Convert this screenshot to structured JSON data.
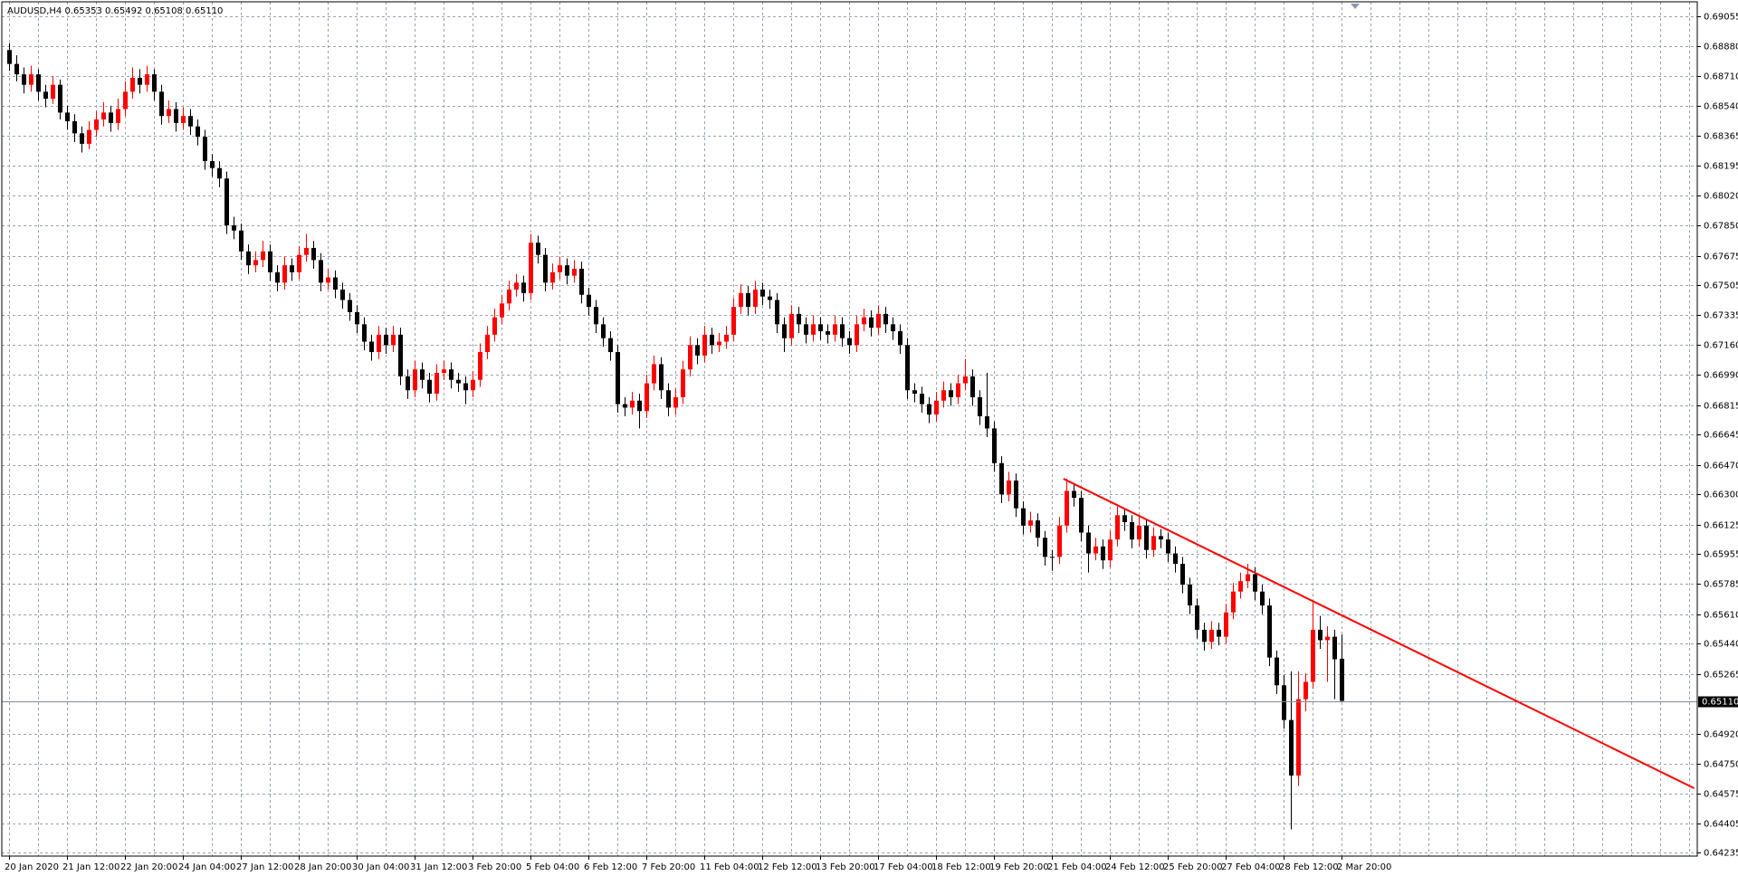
{
  "chart_data": {
    "type": "candlestick",
    "title": "AUDUSD,H4  0.65353 0.65492 0.65108 0.65110",
    "up_color": "#ff0000",
    "down_color": "#000000",
    "grid": true,
    "ylim": [
      0.64216,
      0.69138
    ],
    "yticks": [
      {
        "value": 0.69055,
        "label": "0.69055"
      },
      {
        "value": 0.6888,
        "label": "0.68880"
      },
      {
        "value": 0.6871,
        "label": "0.68710"
      },
      {
        "value": 0.6854,
        "label": "0.68540"
      },
      {
        "value": 0.68365,
        "label": "0.68365"
      },
      {
        "value": 0.68195,
        "label": "0.68195"
      },
      {
        "value": 0.6802,
        "label": "0.68020"
      },
      {
        "value": 0.6785,
        "label": "0.67850"
      },
      {
        "value": 0.67675,
        "label": "0.67675"
      },
      {
        "value": 0.67505,
        "label": "0.67505"
      },
      {
        "value": 0.67335,
        "label": "0.67335"
      },
      {
        "value": 0.6716,
        "label": "0.67160"
      },
      {
        "value": 0.6699,
        "label": "0.66990"
      },
      {
        "value": 0.66815,
        "label": "0.66815"
      },
      {
        "value": 0.66645,
        "label": "0.66645"
      },
      {
        "value": 0.6647,
        "label": "0.66470"
      },
      {
        "value": 0.663,
        "label": "0.66300"
      },
      {
        "value": 0.66125,
        "label": "0.66125"
      },
      {
        "value": 0.65955,
        "label": "0.65955"
      },
      {
        "value": 0.65785,
        "label": "0.65785"
      },
      {
        "value": 0.6561,
        "label": "0.65610"
      },
      {
        "value": 0.6544,
        "label": "0.65440"
      },
      {
        "value": 0.65265,
        "label": "0.65265"
      },
      {
        "value": 0.6492,
        "label": "0.64920"
      },
      {
        "value": 0.6475,
        "label": "0.64750"
      },
      {
        "value": 0.64575,
        "label": "0.64575"
      },
      {
        "value": 0.64405,
        "label": "0.64405"
      },
      {
        "value": 0.64235,
        "label": "0.64235"
      }
    ],
    "current_price": {
      "value": 0.6511,
      "label": "0.65110"
    },
    "trendline": {
      "x": [
        145.6,
        232.7
      ],
      "y": [
        0.6639,
        0.64607
      ],
      "color": "#ff0000"
    },
    "categories": [
      "20 Jan 2020",
      null,
      null,
      null,
      null,
      null,
      null,
      null,
      "21 Jan 12:00",
      null,
      null,
      null,
      null,
      null,
      null,
      null,
      "22 Jan 20:00",
      null,
      null,
      null,
      null,
      null,
      null,
      null,
      "24 Jan 04:00",
      null,
      null,
      null,
      null,
      null,
      null,
      null,
      "27 Jan 12:00",
      null,
      null,
      null,
      null,
      null,
      null,
      null,
      "28 Jan 20:00",
      null,
      null,
      null,
      null,
      null,
      null,
      null,
      "30 Jan 04:00",
      null,
      null,
      null,
      null,
      null,
      null,
      null,
      "31 Jan 12:00",
      null,
      null,
      null,
      null,
      null,
      null,
      null,
      "3 Feb 20:00",
      null,
      null,
      null,
      null,
      null,
      null,
      null,
      "5 Feb 04:00",
      null,
      null,
      null,
      null,
      null,
      null,
      null,
      "6 Feb 12:00",
      null,
      null,
      null,
      null,
      null,
      null,
      null,
      "7 Feb 20:00",
      null,
      null,
      null,
      null,
      null,
      null,
      null,
      "11 Feb 04:00",
      null,
      null,
      null,
      null,
      null,
      null,
      null,
      "12 Feb 12:00",
      null,
      null,
      null,
      null,
      null,
      null,
      null,
      "13 Feb 20:00",
      null,
      null,
      null,
      null,
      null,
      null,
      null,
      "17 Feb 04:00",
      null,
      null,
      null,
      null,
      null,
      null,
      null,
      "18 Feb 12:00",
      null,
      null,
      null,
      null,
      null,
      null,
      null,
      "19 Feb 20:00",
      null,
      null,
      null,
      null,
      null,
      null,
      null,
      "21 Feb 04:00",
      null,
      null,
      null,
      null,
      null,
      null,
      null,
      "24 Feb 12:00",
      null,
      null,
      null,
      null,
      null,
      null,
      null,
      "25 Feb 20:00",
      null,
      null,
      null,
      null,
      null,
      null,
      null,
      "27 Feb 04:00",
      null,
      null,
      null,
      null,
      null,
      null,
      null,
      "28 Feb 12:00",
      null,
      null,
      null,
      null,
      null,
      null,
      null,
      "2 Mar 20:00"
    ],
    "ohlc": [
      [
        0.6886,
        0.689,
        0.6874,
        0.6878
      ],
      [
        0.6878,
        0.6883,
        0.6868,
        0.6872
      ],
      [
        0.6872,
        0.6876,
        0.6861,
        0.6866
      ],
      [
        0.6866,
        0.6877,
        0.6862,
        0.6872
      ],
      [
        0.6872,
        0.6875,
        0.6857,
        0.6862
      ],
      [
        0.6862,
        0.6866,
        0.6853,
        0.6858
      ],
      [
        0.6858,
        0.6871,
        0.6855,
        0.6866
      ],
      [
        0.6866,
        0.6869,
        0.6846,
        0.685
      ],
      [
        0.685,
        0.6854,
        0.684,
        0.6845
      ],
      [
        0.6845,
        0.6849,
        0.6833,
        0.6838
      ],
      [
        0.6838,
        0.6842,
        0.6827,
        0.6832
      ],
      [
        0.6832,
        0.6845,
        0.6829,
        0.684
      ],
      [
        0.684,
        0.6851,
        0.6836,
        0.6846
      ],
      [
        0.6846,
        0.6856,
        0.6842,
        0.685
      ],
      [
        0.685,
        0.6854,
        0.6839,
        0.6844
      ],
      [
        0.6844,
        0.6858,
        0.684,
        0.6852
      ],
      [
        0.6852,
        0.6868,
        0.6848,
        0.6862
      ],
      [
        0.6862,
        0.6876,
        0.6858,
        0.687
      ],
      [
        0.687,
        0.6875,
        0.6861,
        0.6866
      ],
      [
        0.6866,
        0.6877,
        0.6862,
        0.6872
      ],
      [
        0.6872,
        0.6875,
        0.6857,
        0.6862
      ],
      [
        0.6862,
        0.6866,
        0.6843,
        0.6848
      ],
      [
        0.6848,
        0.6857,
        0.6844,
        0.6852
      ],
      [
        0.6852,
        0.6856,
        0.6839,
        0.6844
      ],
      [
        0.6844,
        0.6853,
        0.684,
        0.6848
      ],
      [
        0.6848,
        0.6852,
        0.6837,
        0.6842
      ],
      [
        0.6842,
        0.6846,
        0.6831,
        0.6836
      ],
      [
        0.6836,
        0.684,
        0.6817,
        0.6822
      ],
      [
        0.6822,
        0.6826,
        0.6813,
        0.6818
      ],
      [
        0.6818,
        0.6822,
        0.6807,
        0.6812
      ],
      [
        0.6812,
        0.6816,
        0.678,
        0.6785
      ],
      [
        0.6785,
        0.679,
        0.6777,
        0.6782
      ],
      [
        0.6782,
        0.6786,
        0.6765,
        0.677
      ],
      [
        0.677,
        0.6774,
        0.6757,
        0.6762
      ],
      [
        0.6762,
        0.677,
        0.6758,
        0.6765
      ],
      [
        0.6765,
        0.6776,
        0.6761,
        0.677
      ],
      [
        0.677,
        0.6774,
        0.6753,
        0.6758
      ],
      [
        0.6758,
        0.6762,
        0.6747,
        0.6752
      ],
      [
        0.6752,
        0.6767,
        0.6748,
        0.6762
      ],
      [
        0.6762,
        0.6766,
        0.6753,
        0.6758
      ],
      [
        0.6758,
        0.6773,
        0.6754,
        0.6768
      ],
      [
        0.6768,
        0.678,
        0.6764,
        0.6772
      ],
      [
        0.6772,
        0.6776,
        0.676,
        0.6765
      ],
      [
        0.6765,
        0.6769,
        0.6747,
        0.6752
      ],
      [
        0.6752,
        0.676,
        0.6748,
        0.6755
      ],
      [
        0.6755,
        0.6759,
        0.6743,
        0.6748
      ],
      [
        0.6748,
        0.6752,
        0.6737,
        0.6742
      ],
      [
        0.6742,
        0.6746,
        0.673,
        0.6735
      ],
      [
        0.6735,
        0.6739,
        0.6723,
        0.6728
      ],
      [
        0.6728,
        0.6732,
        0.6713,
        0.6718
      ],
      [
        0.6718,
        0.6722,
        0.6707,
        0.6712
      ],
      [
        0.6712,
        0.6727,
        0.6708,
        0.6722
      ],
      [
        0.6722,
        0.6726,
        0.6711,
        0.6716
      ],
      [
        0.6716,
        0.6727,
        0.6712,
        0.6722
      ],
      [
        0.6722,
        0.6726,
        0.6693,
        0.6698
      ],
      [
        0.6698,
        0.6702,
        0.6685,
        0.669
      ],
      [
        0.669,
        0.6707,
        0.6686,
        0.6702
      ],
      [
        0.6702,
        0.6706,
        0.6691,
        0.6696
      ],
      [
        0.6696,
        0.67,
        0.6683,
        0.6688
      ],
      [
        0.6688,
        0.6705,
        0.6684,
        0.67
      ],
      [
        0.67,
        0.6707,
        0.6696,
        0.6702
      ],
      [
        0.6702,
        0.6706,
        0.6691,
        0.6696
      ],
      [
        0.6696,
        0.67,
        0.6689,
        0.6694
      ],
      [
        0.6694,
        0.6698,
        0.6682,
        0.669
      ],
      [
        0.669,
        0.6701,
        0.6686,
        0.6696
      ],
      [
        0.6696,
        0.6717,
        0.6692,
        0.6712
      ],
      [
        0.6712,
        0.6727,
        0.6708,
        0.6722
      ],
      [
        0.6722,
        0.6737,
        0.6718,
        0.6732
      ],
      [
        0.6732,
        0.6745,
        0.6728,
        0.674
      ],
      [
        0.674,
        0.6753,
        0.6736,
        0.6748
      ],
      [
        0.6748,
        0.6757,
        0.6744,
        0.6752
      ],
      [
        0.6752,
        0.6756,
        0.6741,
        0.6746
      ],
      [
        0.6746,
        0.678,
        0.6742,
        0.6775
      ],
      [
        0.6775,
        0.6779,
        0.6763,
        0.6768
      ],
      [
        0.6768,
        0.6772,
        0.6747,
        0.6752
      ],
      [
        0.6752,
        0.6763,
        0.6748,
        0.6758
      ],
      [
        0.6758,
        0.6767,
        0.6754,
        0.6762
      ],
      [
        0.6762,
        0.6766,
        0.6751,
        0.6756
      ],
      [
        0.6756,
        0.6765,
        0.6752,
        0.676
      ],
      [
        0.676,
        0.6764,
        0.674,
        0.6745
      ],
      [
        0.6745,
        0.6749,
        0.6733,
        0.6738
      ],
      [
        0.6738,
        0.6742,
        0.6723,
        0.6728
      ],
      [
        0.6728,
        0.6732,
        0.6715,
        0.672
      ],
      [
        0.672,
        0.6724,
        0.6707,
        0.6712
      ],
      [
        0.6712,
        0.6716,
        0.6677,
        0.6682
      ],
      [
        0.6682,
        0.6686,
        0.6675,
        0.668
      ],
      [
        0.668,
        0.6689,
        0.6676,
        0.6684
      ],
      [
        0.6684,
        0.6688,
        0.6668,
        0.6678
      ],
      [
        0.6678,
        0.6699,
        0.6674,
        0.6694
      ],
      [
        0.6694,
        0.671,
        0.669,
        0.6705
      ],
      [
        0.6705,
        0.6709,
        0.6685,
        0.669
      ],
      [
        0.669,
        0.6694,
        0.6675,
        0.668
      ],
      [
        0.668,
        0.6691,
        0.6676,
        0.6686
      ],
      [
        0.6686,
        0.6707,
        0.6682,
        0.6702
      ],
      [
        0.6702,
        0.6721,
        0.6698,
        0.6716
      ],
      [
        0.6716,
        0.672,
        0.6705,
        0.671
      ],
      [
        0.671,
        0.6727,
        0.6706,
        0.6722
      ],
      [
        0.6722,
        0.6726,
        0.6711,
        0.6716
      ],
      [
        0.6716,
        0.6723,
        0.6712,
        0.6718
      ],
      [
        0.6718,
        0.6727,
        0.6714,
        0.6722
      ],
      [
        0.6722,
        0.6743,
        0.6718,
        0.6738
      ],
      [
        0.6738,
        0.6751,
        0.6734,
        0.6746
      ],
      [
        0.6746,
        0.675,
        0.6733,
        0.6738
      ],
      [
        0.6738,
        0.6753,
        0.6734,
        0.6748
      ],
      [
        0.6748,
        0.6752,
        0.6739,
        0.6744
      ],
      [
        0.6744,
        0.6748,
        0.6737,
        0.6742
      ],
      [
        0.6742,
        0.6746,
        0.6723,
        0.6728
      ],
      [
        0.6728,
        0.6732,
        0.6712,
        0.672
      ],
      [
        0.672,
        0.6739,
        0.6716,
        0.6734
      ],
      [
        0.6734,
        0.6738,
        0.6723,
        0.6728
      ],
      [
        0.6728,
        0.6732,
        0.6717,
        0.6722
      ],
      [
        0.6722,
        0.6733,
        0.6718,
        0.6728
      ],
      [
        0.6728,
        0.6732,
        0.6719,
        0.6724
      ],
      [
        0.6724,
        0.6728,
        0.6717,
        0.6722
      ],
      [
        0.6722,
        0.6733,
        0.6718,
        0.6728
      ],
      [
        0.6728,
        0.6732,
        0.6715,
        0.672
      ],
      [
        0.672,
        0.6724,
        0.6711,
        0.6716
      ],
      [
        0.6716,
        0.6733,
        0.6712,
        0.6728
      ],
      [
        0.6728,
        0.6737,
        0.6724,
        0.6732
      ],
      [
        0.6732,
        0.6736,
        0.6721,
        0.6726
      ],
      [
        0.6726,
        0.6739,
        0.6722,
        0.6734
      ],
      [
        0.6734,
        0.6738,
        0.6723,
        0.6728
      ],
      [
        0.6728,
        0.6732,
        0.6719,
        0.6724
      ],
      [
        0.6724,
        0.6728,
        0.6711,
        0.6716
      ],
      [
        0.6716,
        0.672,
        0.6685,
        0.669
      ],
      [
        0.669,
        0.6694,
        0.6683,
        0.6688
      ],
      [
        0.6688,
        0.6692,
        0.6677,
        0.6682
      ],
      [
        0.6682,
        0.6686,
        0.6671,
        0.6676
      ],
      [
        0.6676,
        0.6689,
        0.6672,
        0.6684
      ],
      [
        0.6684,
        0.6695,
        0.668,
        0.669
      ],
      [
        0.669,
        0.6694,
        0.6681,
        0.6686
      ],
      [
        0.6686,
        0.6699,
        0.6682,
        0.6694
      ],
      [
        0.6694,
        0.6708,
        0.669,
        0.6698
      ],
      [
        0.6698,
        0.6702,
        0.6681,
        0.6686
      ],
      [
        0.6686,
        0.669,
        0.667,
        0.6675
      ],
      [
        0.6675,
        0.67,
        0.6663,
        0.6668
      ],
      [
        0.6668,
        0.6672,
        0.6643,
        0.6648
      ],
      [
        0.6648,
        0.6652,
        0.6625,
        0.663
      ],
      [
        0.663,
        0.6643,
        0.6626,
        0.6638
      ],
      [
        0.6638,
        0.6642,
        0.6617,
        0.6622
      ],
      [
        0.6622,
        0.6626,
        0.6607,
        0.6612
      ],
      [
        0.6612,
        0.662,
        0.6608,
        0.6615
      ],
      [
        0.6615,
        0.6619,
        0.66,
        0.6605
      ],
      [
        0.6605,
        0.6609,
        0.6589,
        0.6594
      ],
      [
        0.6594,
        0.6598,
        0.6586,
        0.6594
      ],
      [
        0.6594,
        0.6617,
        0.659,
        0.6612
      ],
      [
        0.6612,
        0.6639,
        0.6608,
        0.6632
      ],
      [
        0.6632,
        0.6636,
        0.6623,
        0.6628
      ],
      [
        0.6628,
        0.6632,
        0.6603,
        0.6608
      ],
      [
        0.6608,
        0.6612,
        0.6585,
        0.6596
      ],
      [
        0.6596,
        0.6605,
        0.6592,
        0.66
      ],
      [
        0.66,
        0.6604,
        0.6587,
        0.6592
      ],
      [
        0.6592,
        0.6609,
        0.6588,
        0.6604
      ],
      [
        0.6604,
        0.6623,
        0.66,
        0.6618
      ],
      [
        0.6618,
        0.6622,
        0.6609,
        0.6614
      ],
      [
        0.6614,
        0.6618,
        0.6599,
        0.6604
      ],
      [
        0.6604,
        0.6617,
        0.66,
        0.6612
      ],
      [
        0.6612,
        0.6616,
        0.6593,
        0.6598
      ],
      [
        0.6598,
        0.6611,
        0.6594,
        0.6606
      ],
      [
        0.6606,
        0.661,
        0.6599,
        0.6604
      ],
      [
        0.6604,
        0.6608,
        0.6591,
        0.6596
      ],
      [
        0.6596,
        0.66,
        0.6585,
        0.659
      ],
      [
        0.659,
        0.6594,
        0.6573,
        0.6578
      ],
      [
        0.6578,
        0.6582,
        0.6561,
        0.6566
      ],
      [
        0.6566,
        0.657,
        0.6547,
        0.6552
      ],
      [
        0.6552,
        0.6556,
        0.654,
        0.6545
      ],
      [
        0.6545,
        0.6557,
        0.6541,
        0.6552
      ],
      [
        0.6552,
        0.6556,
        0.6543,
        0.6548
      ],
      [
        0.6548,
        0.6567,
        0.6544,
        0.6562
      ],
      [
        0.6562,
        0.6579,
        0.6558,
        0.6574
      ],
      [
        0.6574,
        0.6585,
        0.657,
        0.658
      ],
      [
        0.658,
        0.659,
        0.6576,
        0.6584
      ],
      [
        0.6584,
        0.6588,
        0.6569,
        0.6574
      ],
      [
        0.6574,
        0.6578,
        0.6561,
        0.6566
      ],
      [
        0.6566,
        0.657,
        0.6531,
        0.6536
      ],
      [
        0.6536,
        0.654,
        0.6515,
        0.652
      ],
      [
        0.652,
        0.6526,
        0.6495,
        0.65
      ],
      [
        0.65,
        0.6528,
        0.6437,
        0.6468
      ],
      [
        0.6468,
        0.6528,
        0.6462,
        0.6512
      ],
      [
        0.6512,
        0.6527,
        0.6505,
        0.6522
      ],
      [
        0.6522,
        0.6568,
        0.6518,
        0.6552
      ],
      [
        0.6552,
        0.656,
        0.6541,
        0.6546
      ],
      [
        0.6546,
        0.6554,
        0.6522,
        0.6548
      ],
      [
        0.6548,
        0.6552,
        0.6512,
        0.6535
      ],
      [
        0.65353,
        0.65492,
        0.65108,
        0.6511
      ]
    ]
  }
}
